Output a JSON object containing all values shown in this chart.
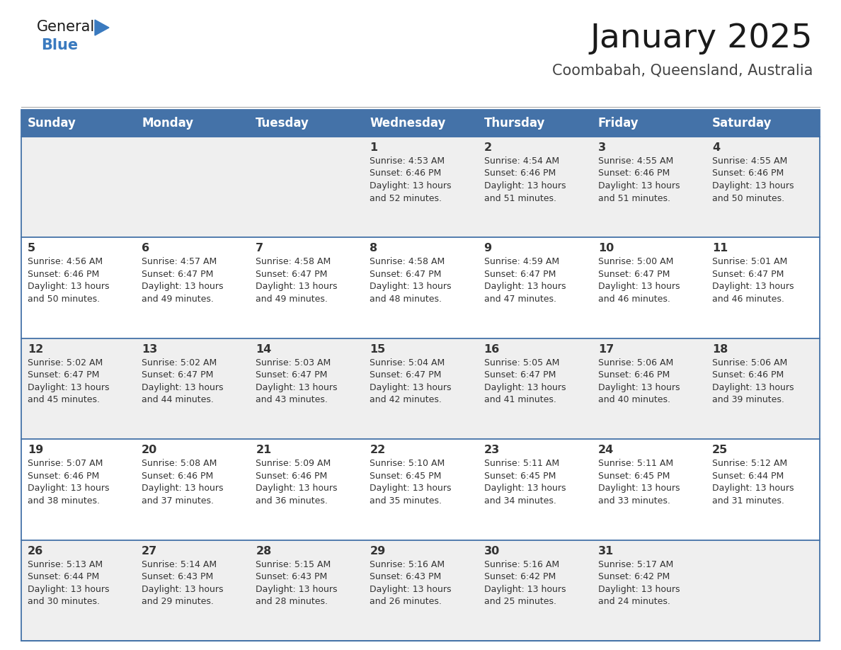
{
  "title": "January 2025",
  "subtitle": "Coombabah, Queensland, Australia",
  "days_of_week": [
    "Sunday",
    "Monday",
    "Tuesday",
    "Wednesday",
    "Thursday",
    "Friday",
    "Saturday"
  ],
  "header_bg": "#4472A8",
  "header_text": "#FFFFFF",
  "row_bg_odd": "#EFEFEF",
  "row_bg_even": "#FFFFFF",
  "border_color": "#4472A8",
  "text_color": "#333333",
  "title_color": "#1a1a1a",
  "subtitle_color": "#444444",
  "logo_general_color": "#1a1a1a",
  "logo_blue_color": "#3a7abf",
  "weeks": [
    [
      {
        "day": "",
        "info": ""
      },
      {
        "day": "",
        "info": ""
      },
      {
        "day": "",
        "info": ""
      },
      {
        "day": "1",
        "info": "Sunrise: 4:53 AM\nSunset: 6:46 PM\nDaylight: 13 hours\nand 52 minutes."
      },
      {
        "day": "2",
        "info": "Sunrise: 4:54 AM\nSunset: 6:46 PM\nDaylight: 13 hours\nand 51 minutes."
      },
      {
        "day": "3",
        "info": "Sunrise: 4:55 AM\nSunset: 6:46 PM\nDaylight: 13 hours\nand 51 minutes."
      },
      {
        "day": "4",
        "info": "Sunrise: 4:55 AM\nSunset: 6:46 PM\nDaylight: 13 hours\nand 50 minutes."
      }
    ],
    [
      {
        "day": "5",
        "info": "Sunrise: 4:56 AM\nSunset: 6:46 PM\nDaylight: 13 hours\nand 50 minutes."
      },
      {
        "day": "6",
        "info": "Sunrise: 4:57 AM\nSunset: 6:47 PM\nDaylight: 13 hours\nand 49 minutes."
      },
      {
        "day": "7",
        "info": "Sunrise: 4:58 AM\nSunset: 6:47 PM\nDaylight: 13 hours\nand 49 minutes."
      },
      {
        "day": "8",
        "info": "Sunrise: 4:58 AM\nSunset: 6:47 PM\nDaylight: 13 hours\nand 48 minutes."
      },
      {
        "day": "9",
        "info": "Sunrise: 4:59 AM\nSunset: 6:47 PM\nDaylight: 13 hours\nand 47 minutes."
      },
      {
        "day": "10",
        "info": "Sunrise: 5:00 AM\nSunset: 6:47 PM\nDaylight: 13 hours\nand 46 minutes."
      },
      {
        "day": "11",
        "info": "Sunrise: 5:01 AM\nSunset: 6:47 PM\nDaylight: 13 hours\nand 46 minutes."
      }
    ],
    [
      {
        "day": "12",
        "info": "Sunrise: 5:02 AM\nSunset: 6:47 PM\nDaylight: 13 hours\nand 45 minutes."
      },
      {
        "day": "13",
        "info": "Sunrise: 5:02 AM\nSunset: 6:47 PM\nDaylight: 13 hours\nand 44 minutes."
      },
      {
        "day": "14",
        "info": "Sunrise: 5:03 AM\nSunset: 6:47 PM\nDaylight: 13 hours\nand 43 minutes."
      },
      {
        "day": "15",
        "info": "Sunrise: 5:04 AM\nSunset: 6:47 PM\nDaylight: 13 hours\nand 42 minutes."
      },
      {
        "day": "16",
        "info": "Sunrise: 5:05 AM\nSunset: 6:47 PM\nDaylight: 13 hours\nand 41 minutes."
      },
      {
        "day": "17",
        "info": "Sunrise: 5:06 AM\nSunset: 6:46 PM\nDaylight: 13 hours\nand 40 minutes."
      },
      {
        "day": "18",
        "info": "Sunrise: 5:06 AM\nSunset: 6:46 PM\nDaylight: 13 hours\nand 39 minutes."
      }
    ],
    [
      {
        "day": "19",
        "info": "Sunrise: 5:07 AM\nSunset: 6:46 PM\nDaylight: 13 hours\nand 38 minutes."
      },
      {
        "day": "20",
        "info": "Sunrise: 5:08 AM\nSunset: 6:46 PM\nDaylight: 13 hours\nand 37 minutes."
      },
      {
        "day": "21",
        "info": "Sunrise: 5:09 AM\nSunset: 6:46 PM\nDaylight: 13 hours\nand 36 minutes."
      },
      {
        "day": "22",
        "info": "Sunrise: 5:10 AM\nSunset: 6:45 PM\nDaylight: 13 hours\nand 35 minutes."
      },
      {
        "day": "23",
        "info": "Sunrise: 5:11 AM\nSunset: 6:45 PM\nDaylight: 13 hours\nand 34 minutes."
      },
      {
        "day": "24",
        "info": "Sunrise: 5:11 AM\nSunset: 6:45 PM\nDaylight: 13 hours\nand 33 minutes."
      },
      {
        "day": "25",
        "info": "Sunrise: 5:12 AM\nSunset: 6:44 PM\nDaylight: 13 hours\nand 31 minutes."
      }
    ],
    [
      {
        "day": "26",
        "info": "Sunrise: 5:13 AM\nSunset: 6:44 PM\nDaylight: 13 hours\nand 30 minutes."
      },
      {
        "day": "27",
        "info": "Sunrise: 5:14 AM\nSunset: 6:43 PM\nDaylight: 13 hours\nand 29 minutes."
      },
      {
        "day": "28",
        "info": "Sunrise: 5:15 AM\nSunset: 6:43 PM\nDaylight: 13 hours\nand 28 minutes."
      },
      {
        "day": "29",
        "info": "Sunrise: 5:16 AM\nSunset: 6:43 PM\nDaylight: 13 hours\nand 26 minutes."
      },
      {
        "day": "30",
        "info": "Sunrise: 5:16 AM\nSunset: 6:42 PM\nDaylight: 13 hours\nand 25 minutes."
      },
      {
        "day": "31",
        "info": "Sunrise: 5:17 AM\nSunset: 6:42 PM\nDaylight: 13 hours\nand 24 minutes."
      },
      {
        "day": "",
        "info": ""
      }
    ]
  ]
}
